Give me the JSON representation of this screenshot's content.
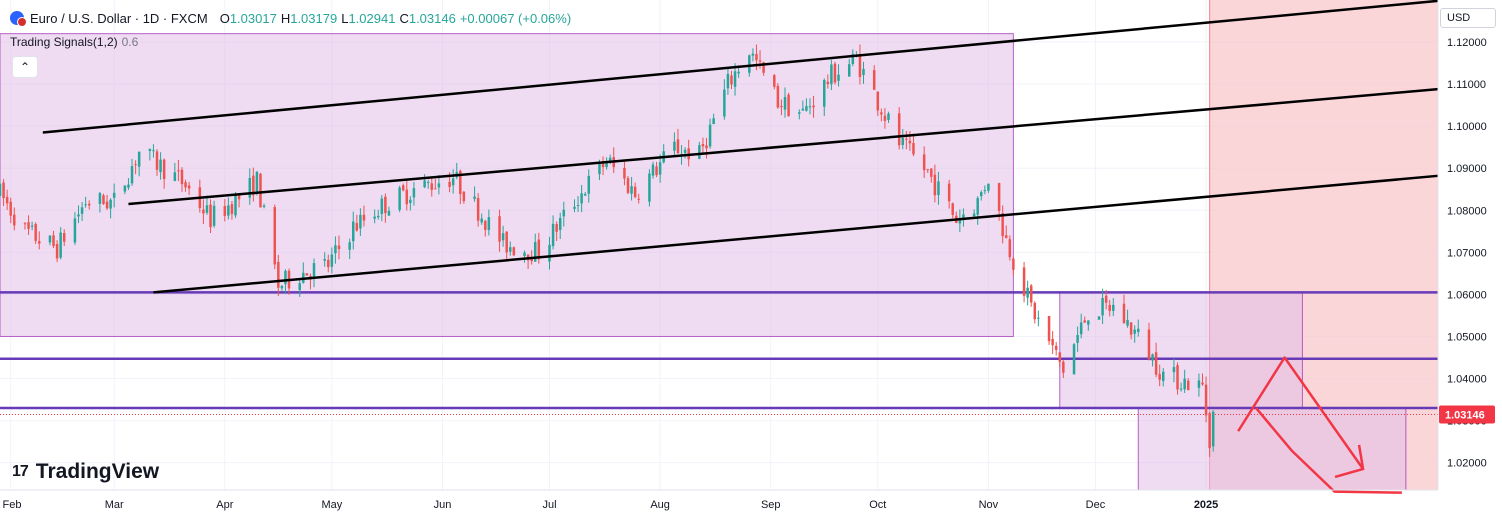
{
  "header": {
    "symbol": "Euro / U.S. Dollar · 1D · FXCM",
    "open_label": "O",
    "open": "1.03017",
    "high_label": "H",
    "high": "1.03179",
    "low_label": "L",
    "low": "1.02941",
    "close_label": "C",
    "close": "1.03146",
    "change": "+0.00067 (+0.06%)"
  },
  "indicator": {
    "name": "Trading Signals(1,2)",
    "value": "0.6"
  },
  "currency": "USD",
  "logo": {
    "mark": "17",
    "text": "TradingView"
  },
  "colors": {
    "up": "#26a69a",
    "down": "#ef5350",
    "zone": "#e1bee7",
    "level": "#673ab7",
    "arrow": "#f23645",
    "highlight": "#f8c8cc"
  },
  "chart_data": {
    "type": "candlestick",
    "symbol": "EURUSD",
    "timeframe": "1D",
    "ylim": [
      1.0135,
      1.13
    ],
    "x_range": [
      "2024-01-29",
      "2025-03-07"
    ],
    "y_ticks": [
      "1.12000",
      "1.11000",
      "1.10000",
      "1.09000",
      "1.08000",
      "1.07000",
      "1.06000",
      "1.05000",
      "1.04000",
      "1.03000",
      "1.02000"
    ],
    "x_ticks": [
      {
        "label": "Feb",
        "date": "2024-02-01"
      },
      {
        "label": "Mar",
        "date": "2024-03-01"
      },
      {
        "label": "Apr",
        "date": "2024-04-01"
      },
      {
        "label": "May",
        "date": "2024-05-01"
      },
      {
        "label": "Jun",
        "date": "2024-06-01"
      },
      {
        "label": "Jul",
        "date": "2024-07-01"
      },
      {
        "label": "Aug",
        "date": "2024-08-01"
      },
      {
        "label": "Sep",
        "date": "2024-09-01"
      },
      {
        "label": "Oct",
        "date": "2024-10-01"
      },
      {
        "label": "Nov",
        "date": "2024-11-01"
      },
      {
        "label": "Dec",
        "date": "2024-12-01"
      },
      {
        "label": "2025",
        "date": "2025-01-01"
      }
    ],
    "current_price": "1.03146",
    "price_path": [
      [
        "2024-01-29",
        1.084
      ],
      [
        "2024-02-05",
        1.075
      ],
      [
        "2024-02-14",
        1.071
      ],
      [
        "2024-02-22",
        1.082
      ],
      [
        "2024-03-01",
        1.082
      ],
      [
        "2024-03-08",
        1.094
      ],
      [
        "2024-03-15",
        1.09
      ],
      [
        "2024-03-21",
        1.086
      ],
      [
        "2024-03-28",
        1.078
      ],
      [
        "2024-04-05",
        1.083
      ],
      [
        "2024-04-10",
        1.087
      ],
      [
        "2024-04-16",
        1.062
      ],
      [
        "2024-04-22",
        1.065
      ],
      [
        "2024-04-30",
        1.067
      ],
      [
        "2024-05-07",
        1.076
      ],
      [
        "2024-05-15",
        1.081
      ],
      [
        "2024-05-24",
        1.085
      ],
      [
        "2024-06-04",
        1.088
      ],
      [
        "2024-06-12",
        1.079
      ],
      [
        "2024-06-18",
        1.072
      ],
      [
        "2024-06-28",
        1.07
      ],
      [
        "2024-07-08",
        1.082
      ],
      [
        "2024-07-17",
        1.092
      ],
      [
        "2024-07-25",
        1.084
      ],
      [
        "2024-08-05",
        1.095
      ],
      [
        "2024-08-12",
        1.093
      ],
      [
        "2024-08-20",
        1.11
      ],
      [
        "2024-08-26",
        1.118
      ],
      [
        "2024-09-03",
        1.106
      ],
      [
        "2024-09-10",
        1.103
      ],
      [
        "2024-09-18",
        1.112
      ],
      [
        "2024-09-25",
        1.116
      ],
      [
        "2024-10-01",
        1.106
      ],
      [
        "2024-10-07",
        1.096
      ],
      [
        "2024-10-15",
        1.089
      ],
      [
        "2024-10-23",
        1.078
      ],
      [
        "2024-10-29",
        1.082
      ],
      [
        "2024-11-01",
        1.088
      ],
      [
        "2024-11-06",
        1.073
      ],
      [
        "2024-11-13",
        1.057
      ],
      [
        "2024-11-22",
        1.042
      ],
      [
        "2024-11-29",
        1.056
      ],
      [
        "2024-12-06",
        1.057
      ],
      [
        "2024-12-13",
        1.05
      ],
      [
        "2024-12-20",
        1.041
      ],
      [
        "2024-12-31",
        1.038
      ],
      [
        "2025-01-02",
        1.026
      ],
      [
        "2025-01-03",
        1.0315
      ]
    ],
    "channel_lines": [
      {
        "name": "channel-top",
        "from": [
          "2024-02-10",
          1.0985
        ],
        "to": [
          "2025-03-07",
          1.1298
        ]
      },
      {
        "name": "channel-middle",
        "from": [
          "2024-03-05",
          1.0815
        ],
        "to": [
          "2025-03-07",
          1.1088
        ]
      },
      {
        "name": "channel-bottom",
        "from": [
          "2024-03-12",
          1.0605
        ],
        "to": [
          "2025-03-07",
          1.0882
        ]
      }
    ],
    "horizontal_levels": [
      1.0605,
      1.0447,
      1.033
    ],
    "zones": [
      {
        "name": "zone-main",
        "from": "2024-01-29",
        "to": "2024-11-08",
        "top": 1.122,
        "bottom": 1.05
      },
      {
        "name": "zone-mid",
        "from": "2024-11-21",
        "to": "2025-01-28",
        "top": 1.0605,
        "bottom": 1.033
      },
      {
        "name": "zone-low",
        "from": "2024-12-13",
        "to": "2025-02-26",
        "top": 1.033,
        "bottom": 1.0135
      }
    ],
    "highlight_region": {
      "from": "2025-01-02",
      "to": "2025-03-07"
    },
    "projection_arrow": [
      [
        "2025-01-10",
        1.0275
      ],
      [
        "2025-01-23",
        1.045
      ],
      [
        "2025-02-14",
        1.0185
      ]
    ],
    "second_arrow": [
      [
        "2025-01-15",
        1.033
      ],
      [
        "2025-01-25",
        1.03
      ],
      [
        "2025-02-06",
        1.025
      ],
      [
        "2025-02-26",
        1.02
      ]
    ]
  }
}
